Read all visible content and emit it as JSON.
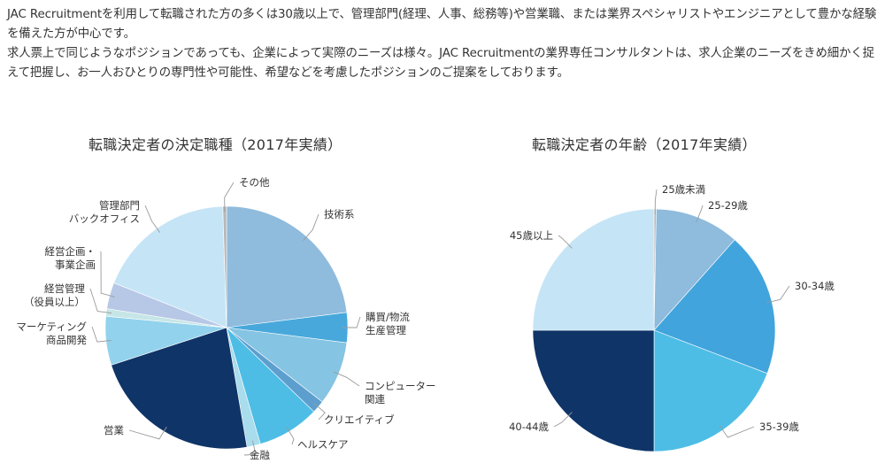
{
  "intro": {
    "line1": "JAC Recruitmentを利用して転職された方の多くは30歳以上で、管理部門(経理、人事、総務等)や営業職、または業界スペシャリストやエンジニアとして豊かな経験を備えた方が中心です。",
    "line2": "求人票上で同じようなポジションであっても、企業によって実際のニーズは様々。JAC Recruitmentの業界専任コンサルタントは、求人企業のニーズをきめ細かく捉えて把握し、お一人おひとりの専門性や可能性、希望などを考慮したポジションのご提案をしております。"
  },
  "chart_data": [
    {
      "type": "pie",
      "title": "転職決定者の決定職種（2017年実績）",
      "start": "top",
      "direction": "clockwise",
      "slices": [
        {
          "label": [
            "技術系"
          ],
          "value": 23.0,
          "color": "#8fbbdd"
        },
        {
          "label": [
            "購買/物流",
            "生産管理"
          ],
          "value": 4.0,
          "color": "#48a8dc"
        },
        {
          "label": [
            "コンピューター",
            "関連"
          ],
          "value": 8.5,
          "color": "#85c4e2"
        },
        {
          "label": [
            "クリエイティブ"
          ],
          "value": 1.7,
          "color": "#5c9fcf"
        },
        {
          "label": [
            "ヘルスケア"
          ],
          "value": 8.3,
          "color": "#4dbde6"
        },
        {
          "label": [
            "金融"
          ],
          "value": 1.8,
          "color": "#a9dcec"
        },
        {
          "label": [
            "営業"
          ],
          "value": 22.7,
          "color": "#0f3468"
        },
        {
          "label": [
            "マーケティング",
            "商品開発"
          ],
          "value": 6.5,
          "color": "#92d2ec"
        },
        {
          "label": [
            "経営管理",
            "（役員以上）"
          ],
          "value": 1.0,
          "color": "#c6e5e6"
        },
        {
          "label": [
            "経営企画・",
            "事業企画"
          ],
          "value": 3.5,
          "color": "#b7c7e6"
        },
        {
          "label": [
            "管理部門",
            "バックオフィス"
          ],
          "value": 18.5,
          "color": "#c5e5f6"
        },
        {
          "label": [
            "その他"
          ],
          "value": 0.5,
          "color": "#b7b7b7"
        }
      ]
    },
    {
      "type": "pie",
      "title": "転職決定者の年齢（2017年実績）",
      "start": "top",
      "direction": "clockwise",
      "slices": [
        {
          "label": [
            "25歳未満"
          ],
          "value": 0.3,
          "color": "#b7b7b7"
        },
        {
          "label": [
            "25-29歳"
          ],
          "value": 11.3,
          "color": "#8fbbdd"
        },
        {
          "label": [
            "30-34歳"
          ],
          "value": 19.2,
          "color": "#41a4dc"
        },
        {
          "label": [
            "35-39歳"
          ],
          "value": 19.2,
          "color": "#4dbde6"
        },
        {
          "label": [
            "40-44歳"
          ],
          "value": 25.0,
          "color": "#0f3468"
        },
        {
          "label": [
            "45歳以上"
          ],
          "value": 25.0,
          "color": "#c5e5f6"
        }
      ]
    }
  ]
}
